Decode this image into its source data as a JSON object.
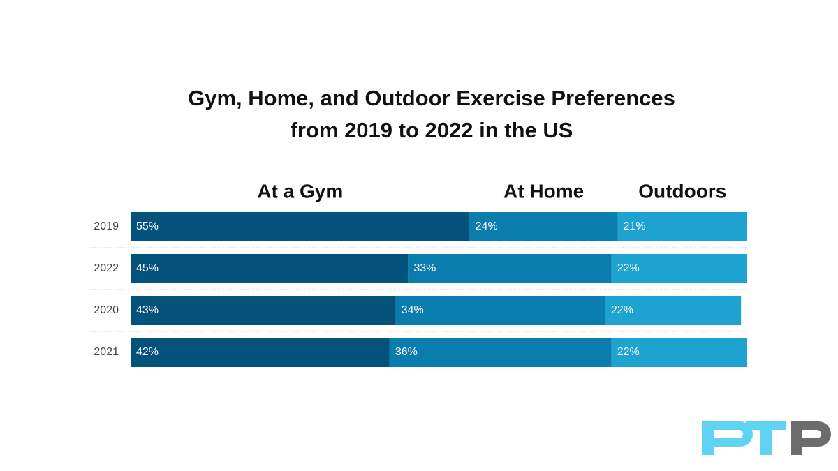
{
  "chart_data": {
    "type": "stacked_bar_horizontal",
    "title": "Gym, Home, and Outdoor Exercise Preferences from 2019 to 2022 in the US",
    "categories": [
      "2019",
      "2022",
      "2020",
      "2021"
    ],
    "series": [
      {
        "name": "At a Gym",
        "color": "#03527b",
        "values": [
          55,
          45,
          43,
          42
        ],
        "value_labels": [
          "55%",
          "45%",
          "43%",
          "42%"
        ]
      },
      {
        "name": "At Home",
        "color": "#0a7cad",
        "values": [
          24,
          33,
          34,
          36
        ],
        "value_labels": [
          "24%",
          "33%",
          "34%",
          "36%"
        ]
      },
      {
        "name": "Outdoors",
        "color": "#1ea3d0",
        "values": [
          21,
          22,
          22,
          22
        ],
        "value_labels": [
          "21%",
          "22%",
          "22%",
          "22%"
        ]
      }
    ],
    "xlim": [
      0,
      100
    ]
  }
}
